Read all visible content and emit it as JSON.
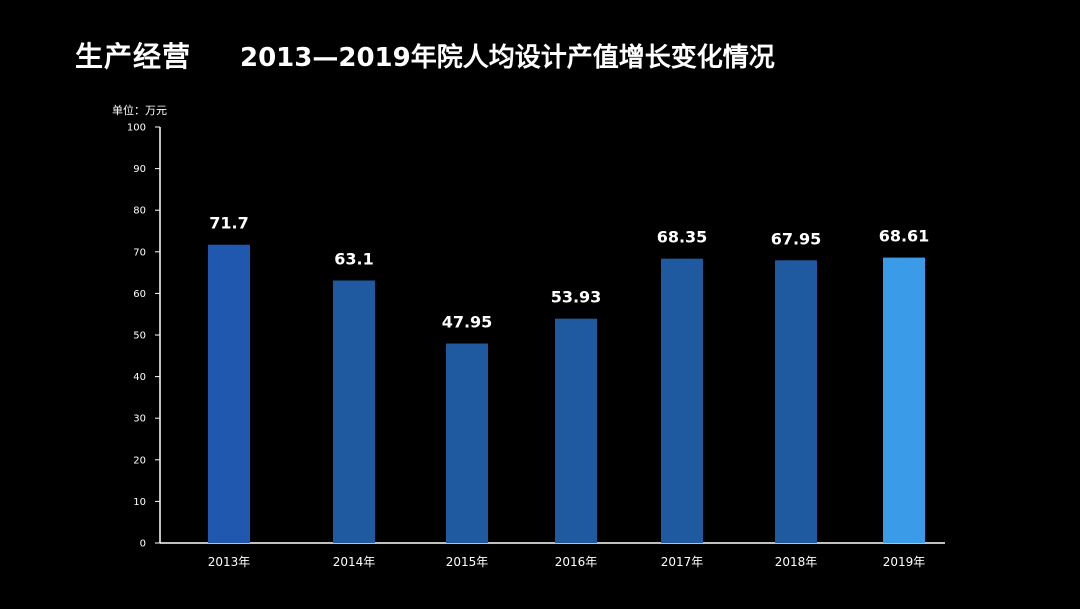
{
  "header": {
    "section_title": "生产经营",
    "chart_title": "2013—2019年院人均设计产值增长变化情况",
    "unit_label": "单位：万元"
  },
  "colors": {
    "bar_default": "#1f5aa0",
    "bar_first": "#2058b0",
    "bar_last": "#3a9be8",
    "axis": "#ffffff"
  },
  "chart_data": {
    "type": "bar",
    "title": "2013—2019年院人均设计产值增长变化情况",
    "ylabel": "单位：万元",
    "ylim": [
      0,
      100
    ],
    "yticks": [
      "0",
      "10",
      "20",
      "30",
      "40",
      "50",
      "60",
      "70",
      "80",
      "90",
      "100"
    ],
    "categories": [
      "2013年",
      "2014年",
      "2015年",
      "2016年",
      "2017年",
      "2018年",
      "2019年"
    ],
    "values": [
      71.7,
      63.1,
      47.95,
      53.93,
      68.35,
      67.95,
      68.61
    ],
    "data_labels": [
      "71.7",
      "63.1",
      "47.95",
      "53.93",
      "68.35",
      "67.95",
      "68.61"
    ],
    "grid": false,
    "legend": "none"
  }
}
